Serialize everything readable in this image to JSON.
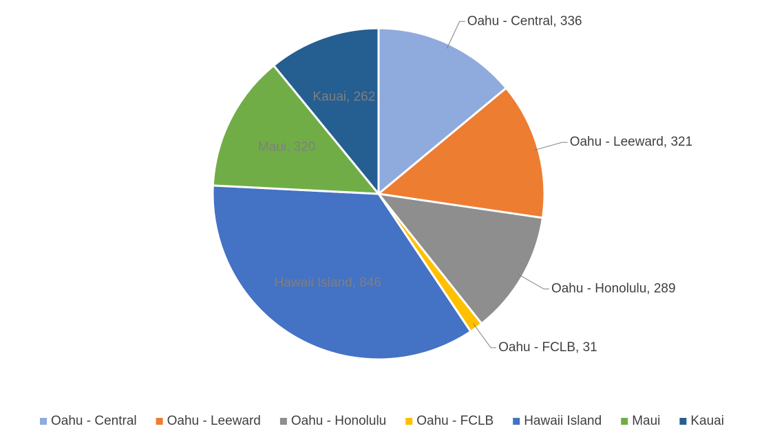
{
  "chart_data": {
    "type": "pie",
    "categories": [
      "Oahu - Central",
      "Oahu - Leeward",
      "Oahu - Honolulu",
      "Oahu - FCLB",
      "Hawaii Island",
      "Maui",
      "Kauai"
    ],
    "values": [
      336,
      321,
      289,
      31,
      846,
      320,
      262
    ],
    "value_labels": [
      "Oahu - Central, 336",
      "Oahu - Leeward, 321",
      "Oahu - Honolulu, 289",
      "Oahu - FCLB, 31",
      "Hawaii Island, 846",
      "Maui, 320",
      "Kauai, 262"
    ],
    "colors": [
      "#8faadc",
      "#ed7d31",
      "#8e8e8e",
      "#ffc000",
      "#4472c4",
      "#70ad47",
      "#255e91"
    ],
    "legend": "bottom"
  }
}
